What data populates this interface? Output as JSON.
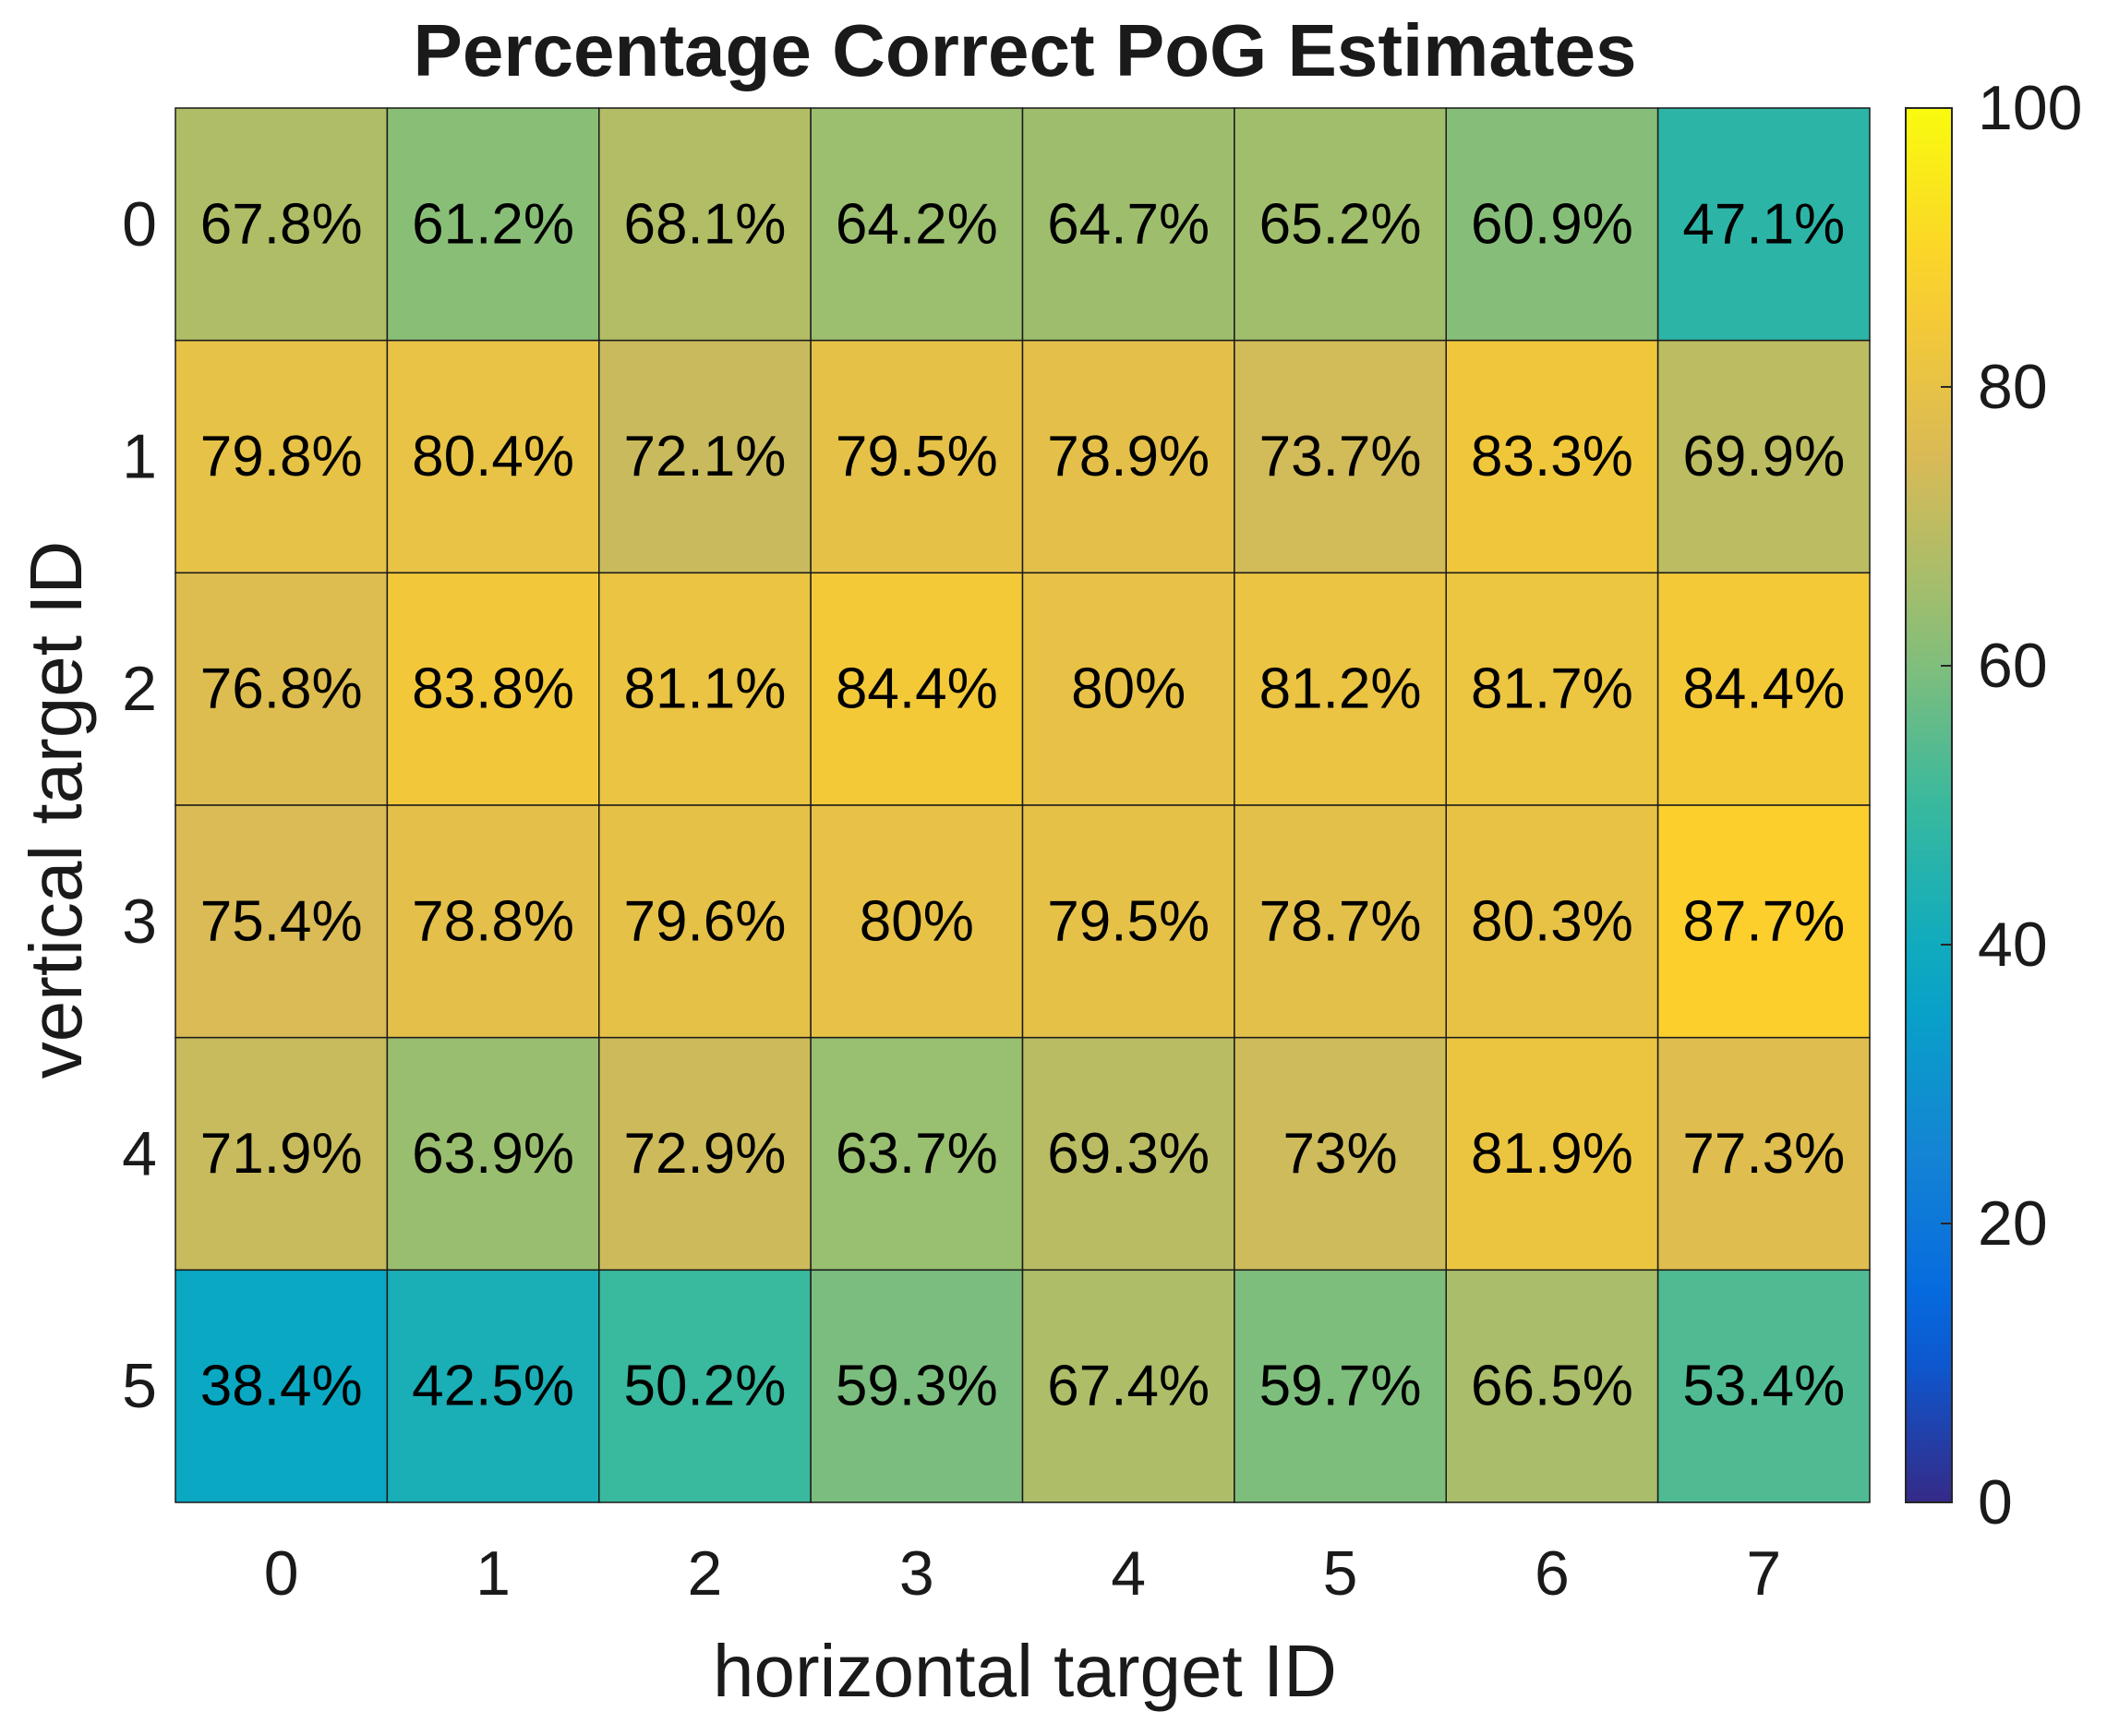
{
  "chart_data": {
    "type": "heatmap",
    "title": "Percentage Correct PoG Estimates",
    "xlabel": "horizontal target ID",
    "ylabel": "vertical target ID",
    "x_categories": [
      "0",
      "1",
      "2",
      "3",
      "4",
      "5",
      "6",
      "7"
    ],
    "y_categories": [
      "0",
      "1",
      "2",
      "3",
      "4",
      "5"
    ],
    "values": [
      [
        67.8,
        61.2,
        68.1,
        64.2,
        64.7,
        65.2,
        60.9,
        47.1
      ],
      [
        79.8,
        80.4,
        72.1,
        79.5,
        78.9,
        73.7,
        83.3,
        69.9
      ],
      [
        76.8,
        83.8,
        81.1,
        84.4,
        80,
        81.2,
        81.7,
        84.4
      ],
      [
        75.4,
        78.8,
        79.6,
        80,
        79.5,
        78.7,
        80.3,
        87.7
      ],
      [
        71.9,
        63.9,
        72.9,
        63.7,
        69.3,
        73,
        81.9,
        77.3
      ],
      [
        38.4,
        42.5,
        50.2,
        59.3,
        67.4,
        59.7,
        66.5,
        53.4
      ]
    ],
    "cell_labels": [
      [
        "67.8%",
        "61.2%",
        "68.1%",
        "64.2%",
        "64.7%",
        "65.2%",
        "60.9%",
        "47.1%"
      ],
      [
        "79.8%",
        "80.4%",
        "72.1%",
        "79.5%",
        "78.9%",
        "73.7%",
        "83.3%",
        "69.9%"
      ],
      [
        "76.8%",
        "83.8%",
        "81.1%",
        "84.4%",
        "80%",
        "81.2%",
        "81.7%",
        "84.4%"
      ],
      [
        "75.4%",
        "78.8%",
        "79.6%",
        "80%",
        "79.5%",
        "78.7%",
        "80.3%",
        "87.7%"
      ],
      [
        "71.9%",
        "63.9%",
        "72.9%",
        "63.7%",
        "69.3%",
        "73%",
        "81.9%",
        "77.3%"
      ],
      [
        "38.4%",
        "42.5%",
        "50.2%",
        "59.3%",
        "67.4%",
        "59.7%",
        "66.5%",
        "53.4%"
      ]
    ],
    "colorbar": {
      "range": [
        0,
        100
      ],
      "ticks": [
        "0",
        "20",
        "40",
        "60",
        "80",
        "100"
      ],
      "colormap": "parula"
    }
  }
}
